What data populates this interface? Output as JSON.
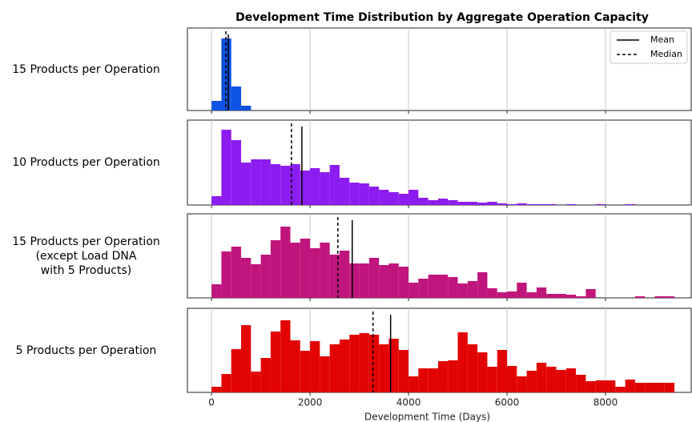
{
  "chart_data": [
    {
      "type": "histogram",
      "title": "Development Time Distribution by Aggregate Operation Capacity",
      "label": "15 Products per Operation",
      "color": "#0d52e0",
      "bins": [
        0,
        200,
        400,
        600,
        800
      ],
      "values": [
        12,
        90,
        30,
        6
      ],
      "ylim": [
        0,
        103
      ],
      "xlim": [
        -490,
        9740
      ],
      "xticks": [
        0,
        2000,
        4000,
        6000,
        8000
      ],
      "mean": 340,
      "median": 290,
      "legend": {
        "mean": "Mean",
        "median": "Median"
      },
      "grid": true
    },
    {
      "type": "histogram",
      "label": "10 Products per Operation",
      "color": "#8c1cf0",
      "bins": [
        0,
        200,
        400,
        600,
        800,
        1000,
        1200,
        1400,
        1600,
        1800,
        2000,
        2200,
        2400,
        2600,
        2800,
        3000,
        3200,
        3400,
        3600,
        3800,
        4000,
        4200,
        4400,
        4600,
        4800,
        5000,
        5200,
        5400,
        5600,
        5800,
        6000,
        6200,
        6400,
        6600,
        6800,
        7000,
        7200,
        7400,
        7600,
        7800,
        8000,
        8200,
        8400,
        8600,
        8800,
        9000,
        9200,
        9400
      ],
      "values": [
        11,
        94,
        81,
        53,
        57,
        57,
        51,
        49,
        51,
        43,
        46,
        41,
        50,
        34,
        28,
        27,
        23,
        19,
        16,
        14,
        19,
        9,
        6,
        8,
        6,
        4,
        4,
        3,
        4,
        2,
        1,
        2,
        1,
        1,
        1,
        0,
        1,
        0,
        0,
        1,
        0,
        0,
        1,
        0,
        0,
        0,
        0
      ],
      "ylim": [
        0,
        106
      ],
      "xlim": [
        -490,
        9740
      ],
      "xticks": [
        0,
        2000,
        4000,
        6000,
        8000
      ],
      "mean": 1834,
      "median": 1623,
      "grid": true
    },
    {
      "type": "histogram",
      "label": "15 Products per Operation\n(except Load DNA\nwith 5 Products)",
      "color": "#c0157c",
      "bins": [
        0,
        200,
        400,
        600,
        800,
        1000,
        1200,
        1400,
        1600,
        1800,
        2000,
        2200,
        2400,
        2600,
        2800,
        3000,
        3200,
        3400,
        3600,
        3800,
        4000,
        4200,
        4400,
        4600,
        4800,
        5000,
        5200,
        5400,
        5600,
        5800,
        6000,
        6200,
        6400,
        6600,
        6800,
        7000,
        7200,
        7400,
        7600,
        7800,
        8000,
        8200,
        8400,
        8600,
        8800,
        9000,
        9200,
        9400
      ],
      "values": [
        17,
        58,
        64,
        50,
        42,
        54,
        72,
        89,
        69,
        74,
        62,
        69,
        54,
        59,
        43,
        43,
        50,
        41,
        43,
        39,
        19,
        24,
        29,
        29,
        26,
        18,
        21,
        32,
        12,
        7,
        8,
        19,
        7,
        13,
        5,
        5,
        4,
        2,
        11,
        0,
        0,
        0,
        0,
        2,
        0,
        2,
        2,
        0
      ],
      "ylim": [
        0,
        105
      ],
      "xlim": [
        -490,
        9740
      ],
      "xticks": [
        0,
        2000,
        4000,
        6000,
        8000
      ],
      "mean": 2857,
      "median": 2565,
      "grid": true
    },
    {
      "type": "histogram",
      "label": "5 Products per Operation",
      "color": "#e20404",
      "x_label": "Development Time (Days)",
      "bins": [
        0,
        200,
        400,
        600,
        800,
        1000,
        1200,
        1400,
        1600,
        1800,
        2000,
        2200,
        2400,
        2600,
        2800,
        3000,
        3200,
        3400,
        3600,
        3800,
        4000,
        4200,
        4400,
        4600,
        4800,
        5000,
        5200,
        5400,
        5600,
        5800,
        6000,
        6200,
        6400,
        6600,
        6800,
        7000,
        7200,
        7400,
        7600,
        7800,
        8000,
        8200,
        8400,
        8600,
        8800,
        9000,
        9200,
        9400
      ],
      "values": [
        7,
        23,
        54,
        84,
        26,
        43,
        76,
        90,
        65,
        52,
        64,
        45,
        60,
        66,
        72,
        74,
        72,
        60,
        67,
        53,
        20,
        30,
        30,
        39,
        40,
        75,
        60,
        50,
        32,
        53,
        33,
        20,
        27,
        37,
        32,
        28,
        30,
        22,
        14,
        15,
        15,
        7,
        16,
        12,
        12,
        12,
        12
      ],
      "ylim": [
        0,
        105
      ],
      "xlim": [
        -490,
        9740
      ],
      "xticks": [
        0,
        2000,
        4000,
        6000,
        8000
      ],
      "mean": 3636,
      "median": 3279,
      "grid": true
    }
  ]
}
